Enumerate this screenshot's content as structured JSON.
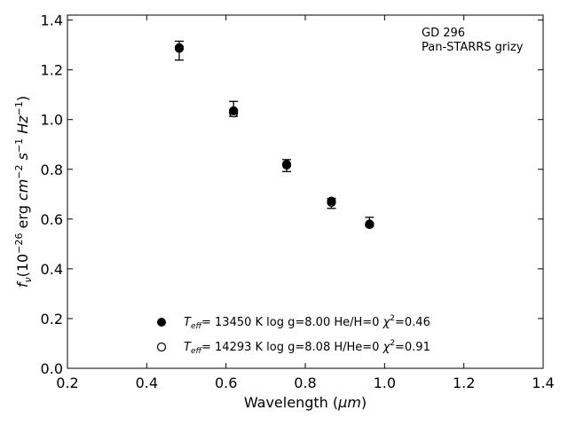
{
  "chart_data": {
    "type": "scatter",
    "xlabel_prefix": "Wavelength (",
    "xlabel_unit": "μm",
    "xlabel_suffix": ")",
    "ylabel_f": "f",
    "ylabel_sub": "ν",
    "ylabel_parts": [
      "(10",
      "−26",
      " erg ",
      "cm",
      "−2",
      " s",
      "−1",
      " Hz",
      "−1",
      ")"
    ],
    "xlim": [
      0.2,
      1.4
    ],
    "ylim": [
      0.0,
      1.42
    ],
    "xticks": [
      "0.2",
      "0.4",
      "0.6",
      "0.8",
      "1.0",
      "1.2",
      "1.4"
    ],
    "yticks": [
      "0.0",
      "0.2",
      "0.4",
      "0.6",
      "0.8",
      "1.0",
      "1.2",
      "1.4"
    ],
    "annotation": [
      "GD 296",
      "Pan-STARRS grizy"
    ],
    "observed": {
      "x": [
        0.482,
        0.619,
        0.753,
        0.866,
        0.962
      ],
      "y": [
        1.277,
        1.043,
        0.815,
        0.663,
        0.589
      ],
      "err": [
        0.038,
        0.03,
        0.024,
        0.02,
        0.018
      ]
    },
    "series": [
      {
        "marker": "filled",
        "x": [
          0.482,
          0.619,
          0.753,
          0.866,
          0.962
        ],
        "y": [
          1.286,
          1.035,
          0.82,
          0.672,
          0.58
        ],
        "label": {
          "T": "T",
          "eff": "eff",
          "tval": "= 13450 K  log g=8.00  He/H=0  ",
          "chi": "χ",
          "sq": "2",
          "chival": "=0.46"
        }
      },
      {
        "marker": "open",
        "x": [
          0.482,
          0.619,
          0.753,
          0.866,
          0.962
        ],
        "y": [
          1.289,
          1.027,
          0.817,
          0.667,
          0.578
        ],
        "label": {
          "T": "T",
          "eff": "eff",
          "tval": "= 14293 K  log g=8.08  H/He=0  ",
          "chi": "χ",
          "sq": "2",
          "chival": "=0.91"
        }
      }
    ]
  }
}
